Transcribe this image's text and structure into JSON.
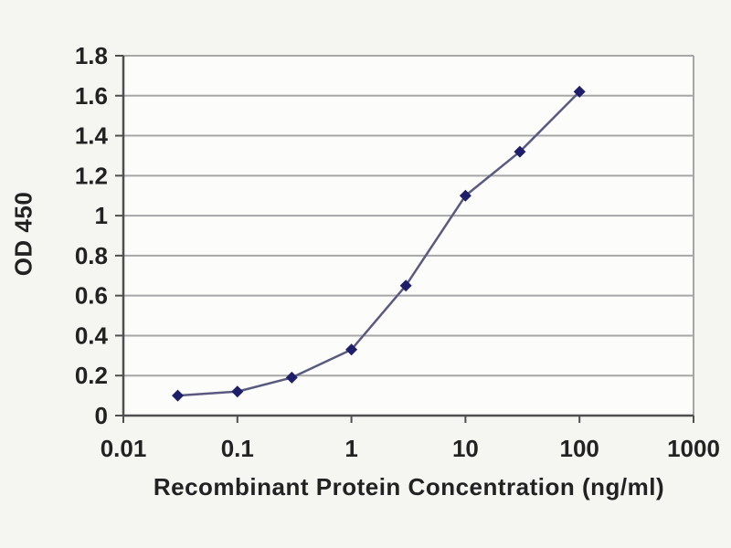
{
  "figure": {
    "kind": "elisa-standard-curve",
    "background": "#f5f5f2",
    "plot_background": "#fcfcfa"
  },
  "chart_data": {
    "type": "line",
    "title": "",
    "xlabel": "Recombinant Protein Concentration (ng/ml)",
    "ylabel": "OD 450",
    "x_scale": "log10",
    "xlim": [
      0.01,
      1000
    ],
    "ylim": [
      0,
      1.8
    ],
    "x_tick_values": [
      0.01,
      0.1,
      1,
      10,
      100,
      1000
    ],
    "x_tick_labels": [
      "0.01",
      "0.1",
      "1",
      "10",
      "100",
      "1000"
    ],
    "y_tick_values": [
      0,
      0.2,
      0.4,
      0.6,
      0.8,
      1,
      1.2,
      1.4,
      1.6,
      1.8
    ],
    "y_tick_labels": [
      "0",
      "0.2",
      "0.4",
      "0.6",
      "0.8",
      "1",
      "1.2",
      "1.4",
      "1.6",
      "1.8"
    ],
    "grid": "horizontal",
    "legend_position": "none",
    "series": [
      {
        "name": "OD 450",
        "marker": "diamond",
        "x": [
          0.03,
          0.1,
          0.3,
          1,
          3,
          10,
          30,
          100
        ],
        "y": [
          0.1,
          0.12,
          0.19,
          0.33,
          0.65,
          1.1,
          1.32,
          1.62
        ]
      }
    ],
    "colors": {
      "line": "#5a5a80",
      "marker": "#1e1e6b",
      "grid": "#a6a6a6",
      "axis": "#4f4f4f",
      "text": "#222222"
    }
  }
}
